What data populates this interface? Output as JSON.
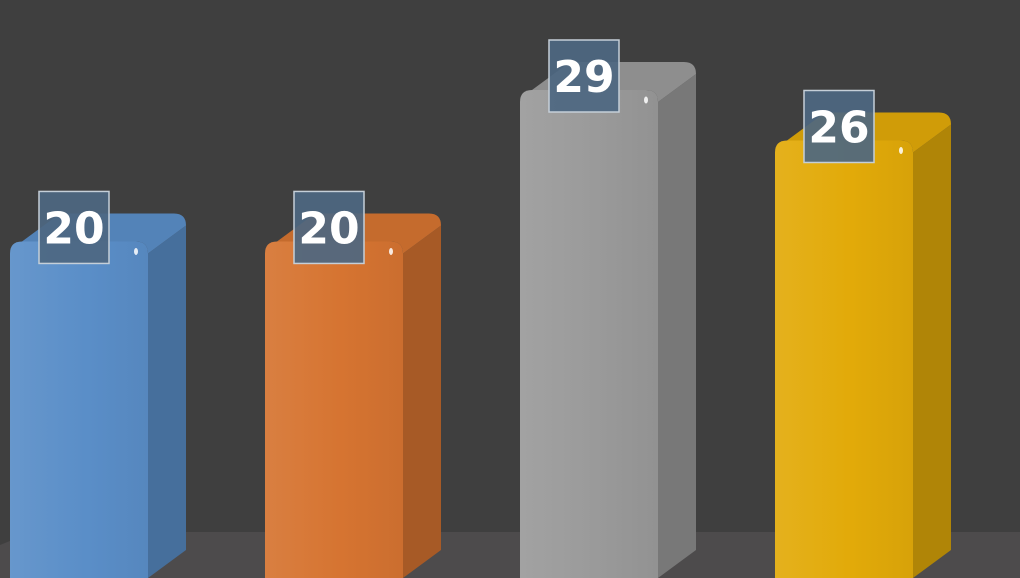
{
  "chart_data": {
    "type": "bar",
    "categories": [
      "",
      "",
      "",
      ""
    ],
    "values": [
      20,
      20,
      29,
      26
    ],
    "data_labels": [
      "20",
      "20",
      "29",
      "26"
    ],
    "ylim": [
      0,
      32
    ],
    "grid": false,
    "legend": "none",
    "three_d": true,
    "colors": [
      "#5a8ec8",
      "#d67431",
      "#9a9a9a",
      "#e2aa09"
    ],
    "background_color": "#3f3f3f",
    "floor_color": "#4d4b4c",
    "label_box_color": "#4d6781"
  }
}
